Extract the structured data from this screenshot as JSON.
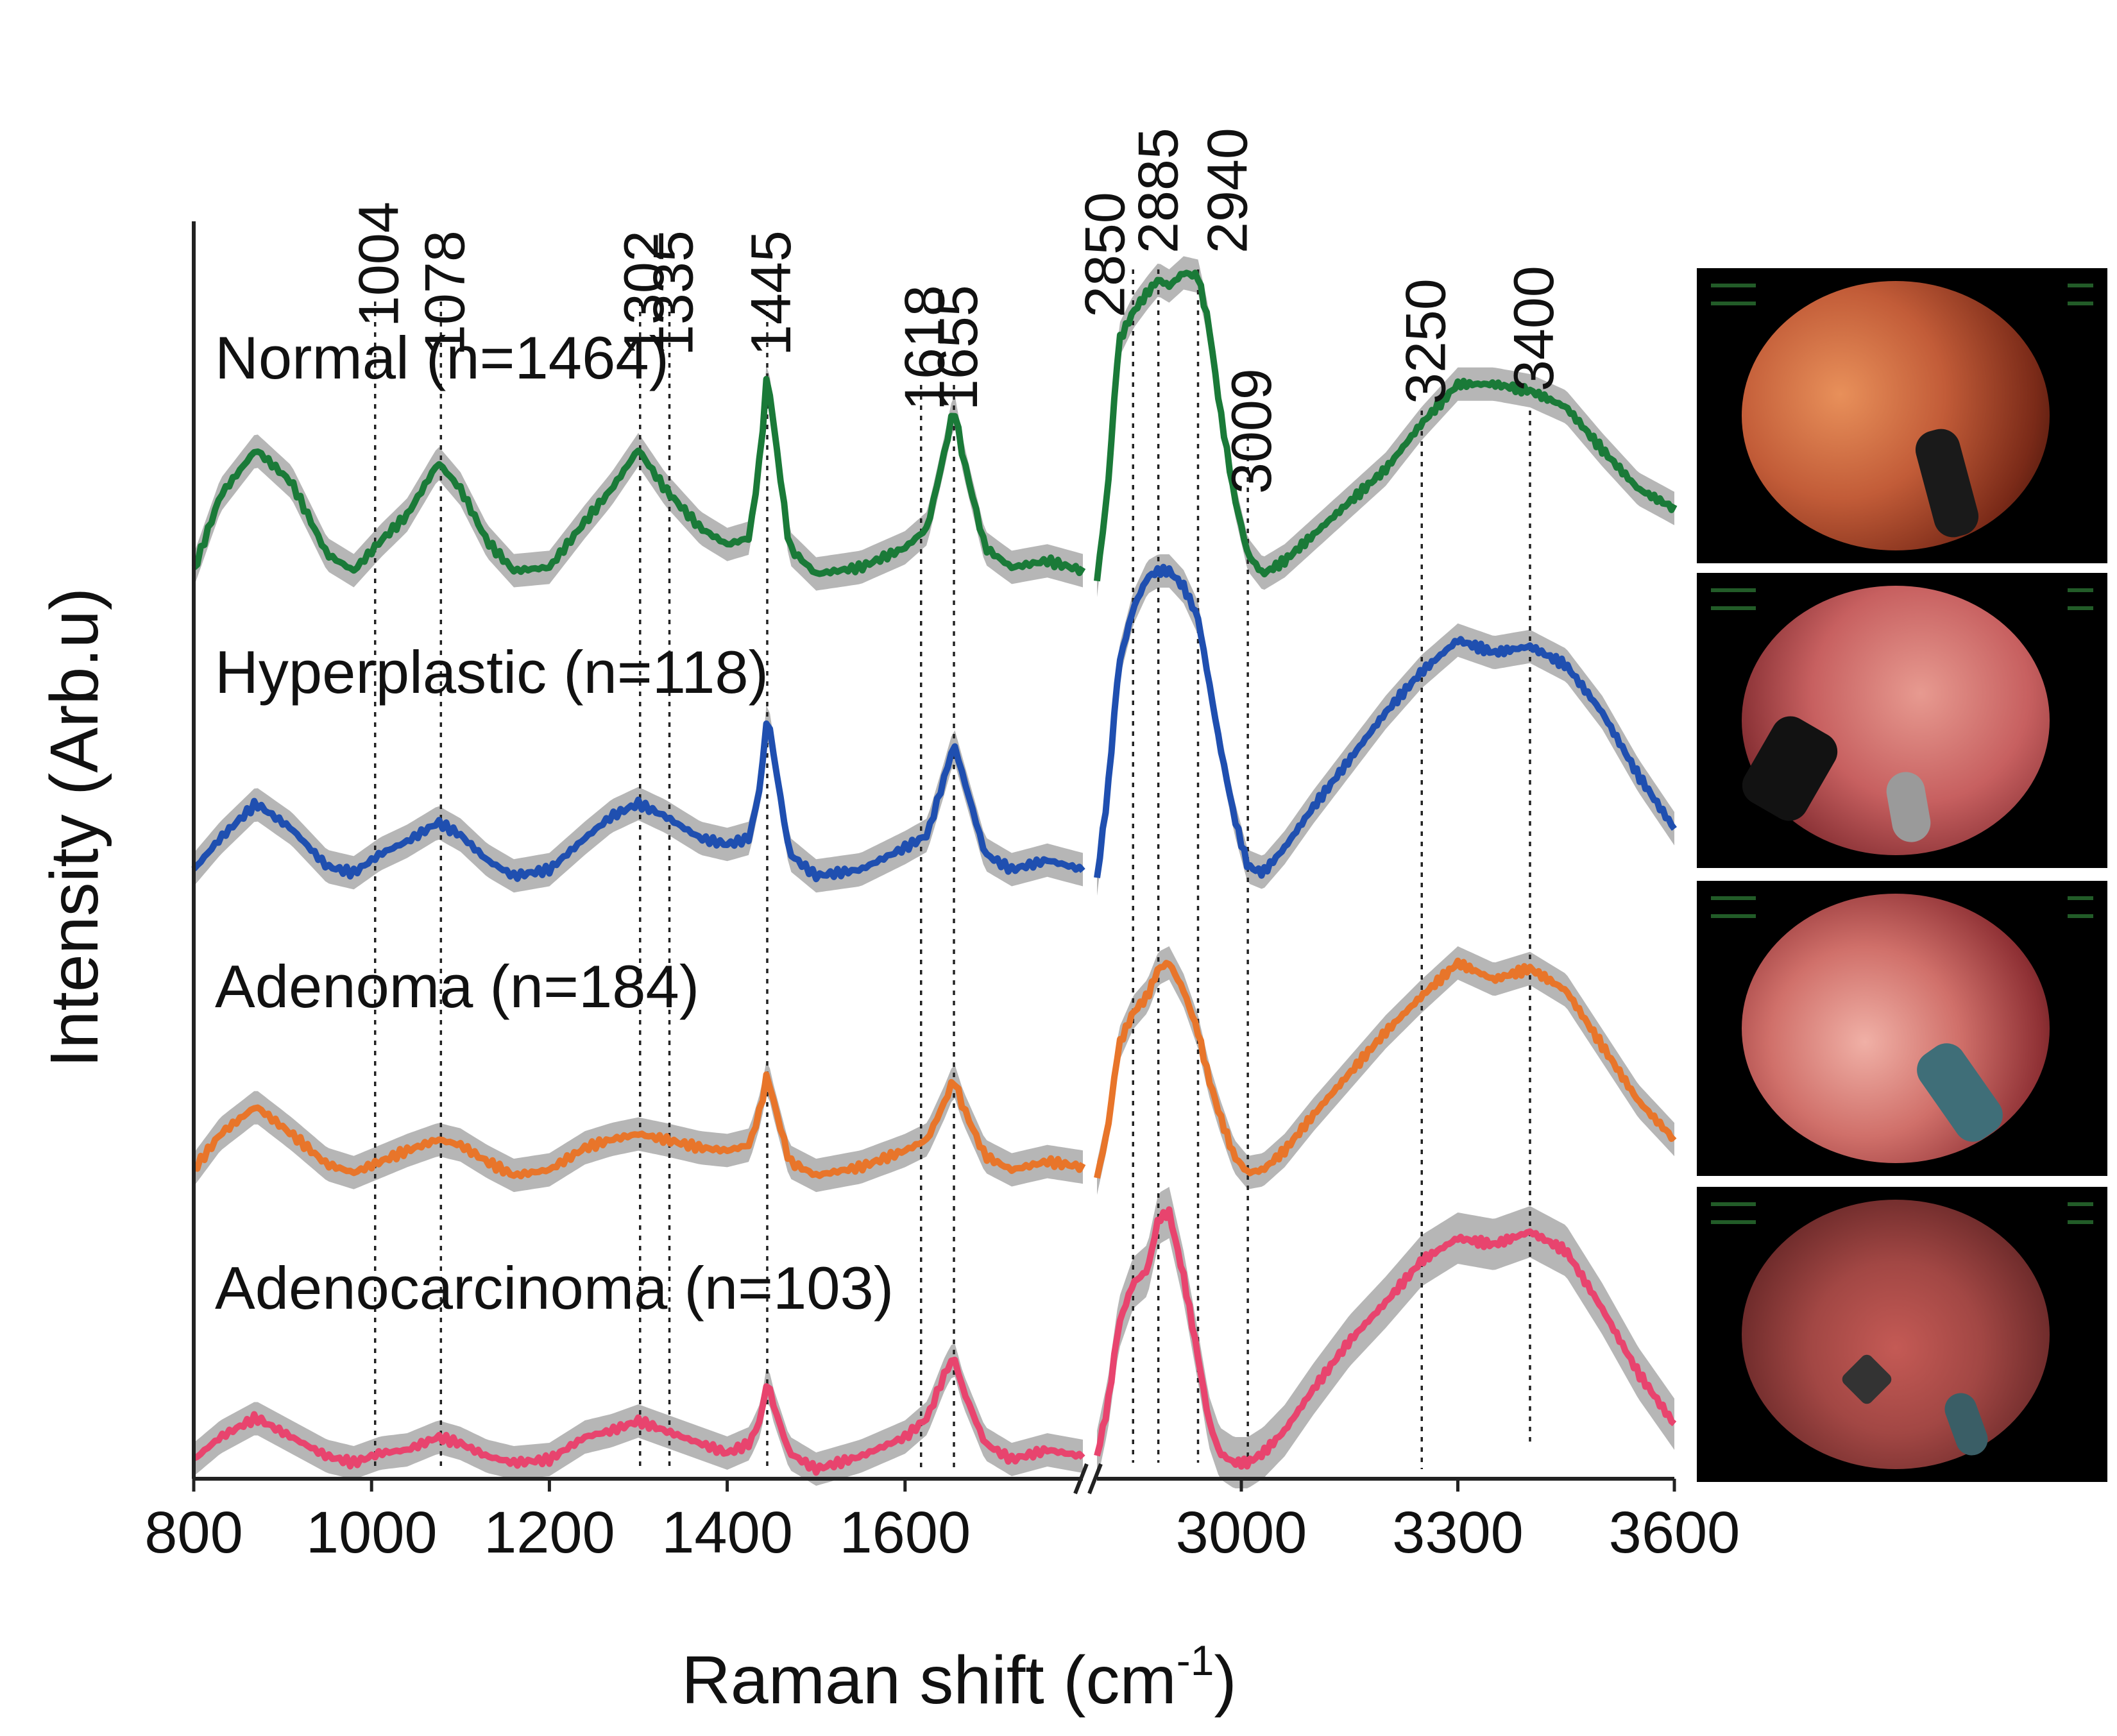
{
  "chart_data": {
    "type": "line",
    "xlabel": "Raman shift (cm",
    "xlabel_superscript": "-1",
    "xlabel_suffix": ")",
    "ylabel": "Intensity (Arb.u)",
    "x_ticks": [
      "800",
      "1000",
      "1200",
      "1400",
      "1600",
      "3000",
      "3300",
      "3600"
    ],
    "panels": [
      {
        "name": "fingerprint",
        "xlim": [
          800,
          1800
        ]
      },
      {
        "name": "high-wavenumber",
        "xlim": [
          2800,
          3600
        ]
      }
    ],
    "peak_labels": [
      "1004",
      "1078",
      "1302",
      "1335",
      "1445",
      "1618",
      "1655",
      "2850",
      "2885",
      "2940",
      "3009",
      "3250",
      "3400"
    ],
    "series": [
      {
        "name": "Normal (n=1464)",
        "color": "#1a7a38",
        "fp": [
          [
            800,
            0.05
          ],
          [
            830,
            0.28
          ],
          [
            870,
            0.42
          ],
          [
            910,
            0.32
          ],
          [
            950,
            0.1
          ],
          [
            980,
            0.05
          ],
          [
            1010,
            0.14
          ],
          [
            1040,
            0.22
          ],
          [
            1075,
            0.38
          ],
          [
            1100,
            0.3
          ],
          [
            1130,
            0.14
          ],
          [
            1160,
            0.05
          ],
          [
            1200,
            0.06
          ],
          [
            1240,
            0.2
          ],
          [
            1270,
            0.3
          ],
          [
            1300,
            0.42
          ],
          [
            1330,
            0.3
          ],
          [
            1370,
            0.18
          ],
          [
            1400,
            0.13
          ],
          [
            1425,
            0.15
          ],
          [
            1438,
            0.42
          ],
          [
            1445,
            0.66
          ],
          [
            1452,
            0.5
          ],
          [
            1470,
            0.12
          ],
          [
            1500,
            0.04
          ],
          [
            1550,
            0.06
          ],
          [
            1600,
            0.12
          ],
          [
            1625,
            0.18
          ],
          [
            1645,
            0.42
          ],
          [
            1655,
            0.55
          ],
          [
            1665,
            0.4
          ],
          [
            1690,
            0.12
          ],
          [
            1720,
            0.06
          ],
          [
            1760,
            0.08
          ],
          [
            1800,
            0.05
          ]
        ],
        "hw": [
          [
            2800,
            0.02
          ],
          [
            2815,
            0.3
          ],
          [
            2830,
            0.75
          ],
          [
            2850,
            0.84
          ],
          [
            2870,
            0.9
          ],
          [
            2885,
            0.94
          ],
          [
            2900,
            0.92
          ],
          [
            2920,
            0.96
          ],
          [
            2940,
            0.95
          ],
          [
            2955,
            0.8
          ],
          [
            2970,
            0.55
          ],
          [
            2990,
            0.28
          ],
          [
            3009,
            0.1
          ],
          [
            3030,
            0.04
          ],
          [
            3060,
            0.08
          ],
          [
            3100,
            0.16
          ],
          [
            3150,
            0.26
          ],
          [
            3200,
            0.36
          ],
          [
            3250,
            0.5
          ],
          [
            3300,
            0.62
          ],
          [
            3350,
            0.62
          ],
          [
            3400,
            0.6
          ],
          [
            3450,
            0.55
          ],
          [
            3500,
            0.42
          ],
          [
            3550,
            0.3
          ],
          [
            3600,
            0.24
          ]
        ]
      },
      {
        "name": "Hyperplastic (n=118)",
        "color": "#1f4fb0",
        "fp": [
          [
            800,
            0.05
          ],
          [
            830,
            0.15
          ],
          [
            870,
            0.26
          ],
          [
            910,
            0.18
          ],
          [
            950,
            0.06
          ],
          [
            980,
            0.04
          ],
          [
            1010,
            0.1
          ],
          [
            1040,
            0.14
          ],
          [
            1075,
            0.2
          ],
          [
            1100,
            0.16
          ],
          [
            1130,
            0.08
          ],
          [
            1160,
            0.03
          ],
          [
            1200,
            0.05
          ],
          [
            1240,
            0.15
          ],
          [
            1270,
            0.22
          ],
          [
            1300,
            0.26
          ],
          [
            1330,
            0.22
          ],
          [
            1370,
            0.15
          ],
          [
            1400,
            0.13
          ],
          [
            1425,
            0.15
          ],
          [
            1438,
            0.33
          ],
          [
            1445,
            0.55
          ],
          [
            1452,
            0.42
          ],
          [
            1470,
            0.1
          ],
          [
            1500,
            0.03
          ],
          [
            1550,
            0.05
          ],
          [
            1600,
            0.12
          ],
          [
            1625,
            0.16
          ],
          [
            1645,
            0.35
          ],
          [
            1655,
            0.45
          ],
          [
            1665,
            0.35
          ],
          [
            1690,
            0.1
          ],
          [
            1720,
            0.05
          ],
          [
            1760,
            0.08
          ],
          [
            1800,
            0.05
          ]
        ],
        "hw": [
          [
            2800,
            0.02
          ],
          [
            2815,
            0.3
          ],
          [
            2830,
            0.7
          ],
          [
            2850,
            0.88
          ],
          [
            2870,
            0.98
          ],
          [
            2885,
            1.0
          ],
          [
            2900,
            1.0
          ],
          [
            2920,
            0.95
          ],
          [
            2940,
            0.85
          ],
          [
            2955,
            0.65
          ],
          [
            2970,
            0.45
          ],
          [
            2990,
            0.22
          ],
          [
            3009,
            0.06
          ],
          [
            3030,
            0.04
          ],
          [
            3060,
            0.12
          ],
          [
            3100,
            0.25
          ],
          [
            3150,
            0.4
          ],
          [
            3200,
            0.55
          ],
          [
            3250,
            0.68
          ],
          [
            3300,
            0.78
          ],
          [
            3350,
            0.74
          ],
          [
            3400,
            0.76
          ],
          [
            3450,
            0.7
          ],
          [
            3500,
            0.55
          ],
          [
            3550,
            0.35
          ],
          [
            3600,
            0.18
          ]
        ]
      },
      {
        "name": "Adenoma (n=184)",
        "color": "#e8752a",
        "fp": [
          [
            800,
            0.05
          ],
          [
            830,
            0.18
          ],
          [
            870,
            0.28
          ],
          [
            910,
            0.18
          ],
          [
            950,
            0.07
          ],
          [
            980,
            0.04
          ],
          [
            1010,
            0.08
          ],
          [
            1040,
            0.12
          ],
          [
            1075,
            0.16
          ],
          [
            1100,
            0.14
          ],
          [
            1130,
            0.08
          ],
          [
            1160,
            0.03
          ],
          [
            1200,
            0.05
          ],
          [
            1240,
            0.13
          ],
          [
            1270,
            0.16
          ],
          [
            1300,
            0.18
          ],
          [
            1330,
            0.16
          ],
          [
            1370,
            0.13
          ],
          [
            1400,
            0.12
          ],
          [
            1425,
            0.14
          ],
          [
            1438,
            0.28
          ],
          [
            1445,
            0.4
          ],
          [
            1452,
            0.3
          ],
          [
            1470,
            0.08
          ],
          [
            1500,
            0.03
          ],
          [
            1550,
            0.06
          ],
          [
            1600,
            0.12
          ],
          [
            1625,
            0.16
          ],
          [
            1645,
            0.3
          ],
          [
            1655,
            0.38
          ],
          [
            1665,
            0.28
          ],
          [
            1690,
            0.1
          ],
          [
            1720,
            0.05
          ],
          [
            1760,
            0.08
          ],
          [
            1800,
            0.06
          ]
        ],
        "hw": [
          [
            2800,
            0.02
          ],
          [
            2815,
            0.2
          ],
          [
            2830,
            0.5
          ],
          [
            2850,
            0.62
          ],
          [
            2870,
            0.68
          ],
          [
            2885,
            0.78
          ],
          [
            2900,
            0.8
          ],
          [
            2920,
            0.7
          ],
          [
            2940,
            0.55
          ],
          [
            2955,
            0.38
          ],
          [
            2970,
            0.25
          ],
          [
            2990,
            0.1
          ],
          [
            3009,
            0.04
          ],
          [
            3030,
            0.05
          ],
          [
            3060,
            0.12
          ],
          [
            3100,
            0.25
          ],
          [
            3150,
            0.4
          ],
          [
            3200,
            0.55
          ],
          [
            3250,
            0.68
          ],
          [
            3300,
            0.8
          ],
          [
            3350,
            0.74
          ],
          [
            3400,
            0.78
          ],
          [
            3450,
            0.7
          ],
          [
            3500,
            0.5
          ],
          [
            3550,
            0.3
          ],
          [
            3600,
            0.16
          ]
        ]
      },
      {
        "name": "Adenocarcinoma (n=103)",
        "color": "#e8446e",
        "fp": [
          [
            800,
            0.03
          ],
          [
            830,
            0.1
          ],
          [
            870,
            0.16
          ],
          [
            910,
            0.1
          ],
          [
            950,
            0.04
          ],
          [
            980,
            0.02
          ],
          [
            1010,
            0.05
          ],
          [
            1040,
            0.06
          ],
          [
            1075,
            0.1
          ],
          [
            1100,
            0.08
          ],
          [
            1130,
            0.04
          ],
          [
            1160,
            0.02
          ],
          [
            1200,
            0.03
          ],
          [
            1240,
            0.1
          ],
          [
            1270,
            0.12
          ],
          [
            1300,
            0.15
          ],
          [
            1330,
            0.12
          ],
          [
            1370,
            0.08
          ],
          [
            1400,
            0.05
          ],
          [
            1425,
            0.08
          ],
          [
            1438,
            0.16
          ],
          [
            1445,
            0.28
          ],
          [
            1452,
            0.2
          ],
          [
            1470,
            0.05
          ],
          [
            1500,
            0.0
          ],
          [
            1550,
            0.04
          ],
          [
            1600,
            0.1
          ],
          [
            1625,
            0.16
          ],
          [
            1645,
            0.3
          ],
          [
            1655,
            0.35
          ],
          [
            1665,
            0.25
          ],
          [
            1690,
            0.08
          ],
          [
            1720,
            0.03
          ],
          [
            1760,
            0.06
          ],
          [
            1800,
            0.04
          ]
        ],
        "hw": [
          [
            2800,
            0.04
          ],
          [
            2815,
            0.2
          ],
          [
            2830,
            0.45
          ],
          [
            2850,
            0.58
          ],
          [
            2870,
            0.62
          ],
          [
            2885,
            0.78
          ],
          [
            2900,
            0.8
          ],
          [
            2920,
            0.6
          ],
          [
            2940,
            0.35
          ],
          [
            2955,
            0.15
          ],
          [
            2970,
            0.05
          ],
          [
            2990,
            0.02
          ],
          [
            3009,
            0.02
          ],
          [
            3030,
            0.05
          ],
          [
            3060,
            0.12
          ],
          [
            3100,
            0.25
          ],
          [
            3150,
            0.4
          ],
          [
            3200,
            0.52
          ],
          [
            3250,
            0.65
          ],
          [
            3300,
            0.72
          ],
          [
            3350,
            0.7
          ],
          [
            3400,
            0.74
          ],
          [
            3450,
            0.68
          ],
          [
            3500,
            0.5
          ],
          [
            3550,
            0.3
          ],
          [
            3600,
            0.14
          ]
        ]
      }
    ]
  }
}
